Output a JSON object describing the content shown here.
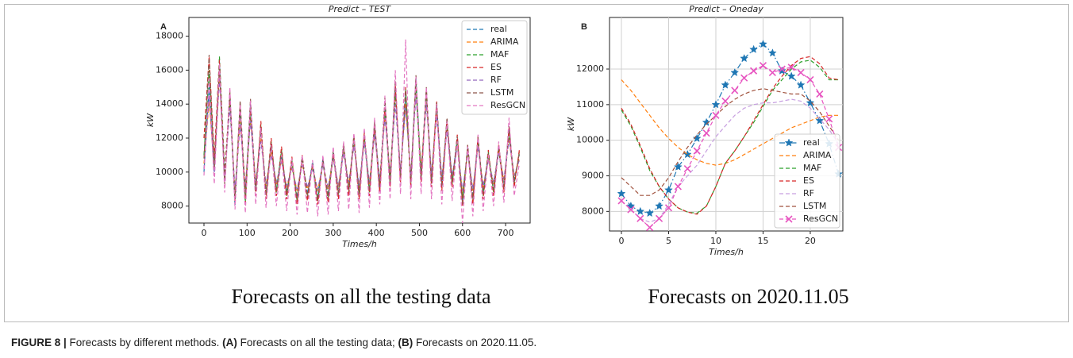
{
  "chart_data": [
    {
      "type": "line",
      "label": "A",
      "title": "Predict – TEST",
      "xlabel": "Times/h",
      "ylabel": "kW",
      "x": [
        0,
        12,
        24,
        36,
        48,
        60,
        72,
        84,
        96,
        108,
        120,
        132,
        144,
        156,
        168,
        180,
        192,
        204,
        216,
        228,
        240,
        252,
        264,
        276,
        288,
        300,
        312,
        324,
        336,
        348,
        360,
        372,
        384,
        396,
        408,
        420,
        432,
        444,
        456,
        468,
        480,
        492,
        504,
        516,
        528,
        540,
        552,
        564,
        576,
        588,
        600,
        612,
        624,
        636,
        648,
        660,
        672,
        684,
        696,
        708,
        720,
        732
      ],
      "xlim": [
        -35,
        757
      ],
      "ylim": [
        7000,
        19100
      ],
      "xticks": [
        0,
        100,
        200,
        300,
        400,
        500,
        600,
        700
      ],
      "yticks": [
        8000,
        10000,
        12000,
        14000,
        16000,
        18000
      ],
      "grid": false,
      "legend": "upper right",
      "linestyle": "dashed",
      "series": [
        {
          "name": "real",
          "color": "#1f77b4",
          "values": [
            10000,
            15000,
            9800,
            16500,
            9500,
            14500,
            8000,
            13500,
            8500,
            14000,
            9000,
            12500,
            8800,
            11500,
            9000,
            11000,
            8800,
            10500,
            8500,
            10800,
            8700,
            10600,
            8500,
            10800,
            8600,
            11200,
            8800,
            11500,
            9000,
            12000,
            8800,
            12200,
            9000,
            12800,
            9200,
            14000,
            9500,
            15000,
            9800,
            14500,
            9500,
            15500,
            9800,
            14800,
            9500,
            14000,
            9300,
            13000,
            9500,
            12000,
            8200,
            11500,
            8500,
            12000,
            8800,
            11000,
            9000,
            11500,
            9200,
            12500,
            9500,
            11000
          ]
        },
        {
          "name": "ARIMA",
          "color": "#ff7f0e",
          "values": [
            10500,
            14200,
            10200,
            15800,
            9800,
            14000,
            8800,
            13000,
            9000,
            13200,
            9300,
            12000,
            9200,
            11200,
            9300,
            10700,
            9100,
            10300,
            8900,
            10500,
            9000,
            10300,
            8900,
            10500,
            9000,
            10900,
            9100,
            11200,
            9300,
            11600,
            9100,
            11800,
            9300,
            12300,
            9500,
            13400,
            9800,
            14300,
            10000,
            14000,
            9800,
            14800,
            10100,
            14200,
            9800,
            13500,
            9600,
            12600,
            9700,
            11700,
            8700,
            11200,
            8900,
            11600,
            9100,
            10800,
            9300,
            11200,
            9500,
            12000,
            9700,
            10800
          ]
        },
        {
          "name": "MAF",
          "color": "#2ca02c",
          "values": [
            11000,
            16000,
            10500,
            16800,
            10000,
            14200,
            8500,
            13800,
            8200,
            13500,
            8800,
            12800,
            8600,
            11800,
            8800,
            11300,
            8600,
            10700,
            8300,
            10900,
            8500,
            10400,
            8300,
            10600,
            8400,
            11000,
            8600,
            11400,
            8800,
            11800,
            8600,
            12000,
            8800,
            12500,
            9000,
            13600,
            9300,
            14700,
            9600,
            14900,
            9300,
            15200,
            9600,
            14500,
            9300,
            13800,
            9100,
            12800,
            9300,
            11800,
            8500,
            11300,
            8300,
            11800,
            8600,
            11200,
            8800,
            11300,
            9000,
            12300,
            9300,
            11200
          ]
        },
        {
          "name": "ES",
          "color": "#d62728",
          "values": [
            12000,
            16800,
            10800,
            16600,
            9800,
            14600,
            8300,
            14000,
            8000,
            13800,
            8600,
            13000,
            8400,
            12000,
            8600,
            11500,
            8400,
            10900,
            8100,
            11000,
            8300,
            10500,
            8100,
            10700,
            8200,
            11100,
            8400,
            11600,
            8600,
            12100,
            8400,
            12300,
            8600,
            12700,
            8800,
            13800,
            9100,
            15100,
            9400,
            15000,
            9100,
            15400,
            9400,
            14900,
            9100,
            14200,
            8900,
            13100,
            9100,
            12200,
            8000,
            11600,
            8100,
            12100,
            8400,
            11300,
            8600,
            11600,
            8800,
            12600,
            9100,
            11300
          ]
        },
        {
          "name": "RF",
          "color": "#9467bd",
          "values": [
            10200,
            14500,
            10000,
            15500,
            9600,
            13800,
            9000,
            12800,
            9200,
            13000,
            9400,
            11800,
            9300,
            11000,
            9400,
            10600,
            9200,
            10200,
            9000,
            10400,
            9100,
            10200,
            9000,
            10400,
            9100,
            10800,
            9200,
            11100,
            9400,
            11500,
            9200,
            11700,
            9400,
            12200,
            9600,
            13200,
            9900,
            14000,
            10100,
            13800,
            9900,
            14500,
            10100,
            14000,
            9900,
            13300,
            9700,
            12400,
            9800,
            11500,
            8900,
            11100,
            9000,
            11500,
            9200,
            10700,
            9400,
            11100,
            9600,
            11900,
            9800,
            10700
          ]
        },
        {
          "name": "LSTM",
          "color": "#8c564b",
          "values": [
            10800,
            16900,
            10300,
            16200,
            9300,
            14800,
            8400,
            14200,
            8600,
            14300,
            8900,
            12700,
            8700,
            11700,
            8900,
            11200,
            8700,
            10600,
            8400,
            10900,
            8600,
            10500,
            8400,
            10700,
            8500,
            11300,
            8700,
            11700,
            8900,
            12200,
            8700,
            12400,
            8900,
            13000,
            9100,
            14400,
            9400,
            15400,
            9700,
            14800,
            9400,
            15700,
            9700,
            15000,
            9400,
            14100,
            9200,
            13200,
            9400,
            12100,
            8100,
            11600,
            8400,
            12100,
            8700,
            11100,
            8900,
            11600,
            9100,
            12700,
            9400,
            11100
          ]
        },
        {
          "name": "ResGCN",
          "color": "#e377c2",
          "values": [
            9800,
            15500,
            9300,
            16400,
            8800,
            15000,
            7800,
            14000,
            7600,
            14200,
            8100,
            12600,
            7900,
            11600,
            8000,
            11000,
            7700,
            10800,
            7500,
            11000,
            7600,
            10700,
            7400,
            11000,
            7500,
            11500,
            7700,
            11800,
            7800,
            12300,
            7600,
            12600,
            7900,
            13200,
            8100,
            14500,
            8400,
            16000,
            8700,
            17800,
            8400,
            15600,
            8700,
            15000,
            8400,
            14000,
            8100,
            13000,
            8300,
            11800,
            7000,
            11500,
            7400,
            12200,
            7700,
            11000,
            8000,
            11800,
            8200,
            13200,
            8600,
            10500
          ]
        }
      ]
    },
    {
      "type": "line",
      "label": "B",
      "title": "Predict – Oneday",
      "xlabel": "Times/h",
      "ylabel": "kW",
      "x": [
        0,
        1,
        2,
        3,
        4,
        5,
        6,
        7,
        8,
        9,
        10,
        11,
        12,
        13,
        14,
        15,
        16,
        17,
        18,
        19,
        20,
        21,
        22,
        23
      ],
      "xlim": [
        -1.26,
        23.45
      ],
      "ylim": [
        7450,
        13450
      ],
      "xticks": [
        0,
        5,
        10,
        15,
        20
      ],
      "yticks": [
        8000,
        9000,
        10000,
        11000,
        12000
      ],
      "grid": true,
      "legend": "lower right",
      "linestyle": "dashed",
      "series": [
        {
          "name": "real",
          "color": "#1f77b4",
          "linestyle": "dashdot",
          "marker": "*",
          "values": [
            8500,
            8150,
            8000,
            7950,
            8150,
            8600,
            9250,
            9600,
            10050,
            10500,
            11000,
            11550,
            11900,
            12300,
            12550,
            12700,
            12450,
            11950,
            11800,
            11550,
            11050,
            10550,
            9900,
            9050
          ]
        },
        {
          "name": "ARIMA",
          "color": "#ff7f0e",
          "values": [
            11700,
            11400,
            11050,
            10700,
            10350,
            10050,
            9800,
            9600,
            9450,
            9350,
            9300,
            9350,
            9450,
            9600,
            9750,
            9900,
            10050,
            10200,
            10350,
            10450,
            10550,
            10650,
            10700,
            10700
          ]
        },
        {
          "name": "MAF",
          "color": "#2ca02c",
          "values": [
            10850,
            10400,
            9800,
            9150,
            8700,
            8350,
            8100,
            7980,
            7950,
            8150,
            8700,
            9350,
            9700,
            10100,
            10500,
            10950,
            11400,
            11700,
            12000,
            12200,
            12250,
            12050,
            11700,
            11700
          ]
        },
        {
          "name": "ES",
          "color": "#d62728",
          "values": [
            10900,
            10450,
            9850,
            9200,
            8700,
            8350,
            8100,
            7980,
            7920,
            8150,
            8700,
            9350,
            9700,
            10100,
            10550,
            11000,
            11450,
            11800,
            12100,
            12300,
            12350,
            12150,
            11750,
            11700
          ]
        },
        {
          "name": "RF",
          "color": "#c79fe0",
          "values": [
            8300,
            8050,
            7800,
            7700,
            7800,
            8200,
            8700,
            9000,
            9300,
            9700,
            10100,
            10400,
            10700,
            10900,
            11000,
            11050,
            11050,
            11100,
            11150,
            11100,
            10900,
            10600,
            10300,
            9900
          ]
        },
        {
          "name": "LSTM",
          "color": "#a0523d",
          "values": [
            8950,
            8700,
            8450,
            8450,
            8600,
            8950,
            9400,
            9800,
            10150,
            10450,
            10700,
            10950,
            11150,
            11300,
            11400,
            11450,
            11400,
            11350,
            11300,
            11300,
            11100,
            10800,
            10400,
            10000
          ]
        },
        {
          "name": "ResGCN",
          "color": "#e754c0",
          "marker": "x",
          "values": [
            8300,
            8050,
            7800,
            7550,
            7800,
            8100,
            8700,
            9200,
            9700,
            10200,
            10700,
            11100,
            11400,
            11750,
            11950,
            12100,
            11900,
            12000,
            12050,
            11900,
            11700,
            11300,
            10600,
            9800
          ]
        }
      ]
    }
  ],
  "subcaptions": [
    "Forecasts on all the testing data",
    "Forecasts on 2020.11.05"
  ],
  "caption": [
    {
      "text": "FIGURE 8 |",
      "bold": true
    },
    {
      "text": " Forecasts by different methods. "
    },
    {
      "text": "(A)",
      "bold": true
    },
    {
      "text": " Forecasts on all the testing data; "
    },
    {
      "text": "(B)",
      "bold": true
    },
    {
      "text": " Forecasts on 2020.11.05."
    }
  ]
}
